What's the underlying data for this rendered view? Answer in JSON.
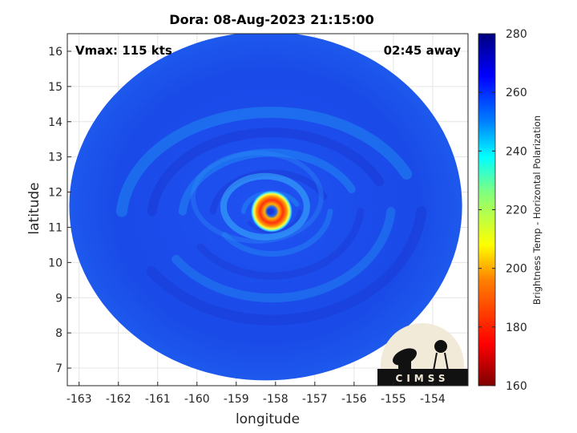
{
  "chart_data": {
    "type": "heatmap",
    "title": "Dora: 08-Aug-2023 21:15:00",
    "xlabel": "longitude",
    "ylabel": "latitude",
    "xlim": [
      -163.3,
      -153.1
    ],
    "ylim": [
      6.5,
      16.5
    ],
    "x_ticks": [
      -163,
      -162,
      -161,
      -160,
      -159,
      -158,
      -157,
      -156,
      -155,
      -154
    ],
    "y_ticks": [
      7,
      8,
      9,
      10,
      11,
      12,
      13,
      14,
      15,
      16
    ],
    "grid": true,
    "annotations": {
      "top_left": "Vmax: 115 kts",
      "top_right": "02:45 away"
    },
    "storm_center": {
      "lon": -158.1,
      "lat": 11.45
    },
    "swath": {
      "center_lon": -158.25,
      "center_lat": 11.6,
      "lon_radius": 5.0,
      "lat_radius": 4.95
    },
    "colorbar": {
      "label": "Brightness Temp - Horizontal Polarization",
      "range": [
        160,
        280
      ],
      "ticks": [
        160,
        180,
        200,
        220,
        240,
        260,
        280
      ],
      "colormap": "jet"
    },
    "logo": {
      "text": "CIMSS"
    }
  },
  "colors": {
    "background_field": "#1a4cf0",
    "cold_band": "#1a2fc8",
    "warm_band": "#23a8f5",
    "eye_core": "#1840e0",
    "eyewall_hot": "#e01a10",
    "logo_disk": "#f2ead8"
  }
}
